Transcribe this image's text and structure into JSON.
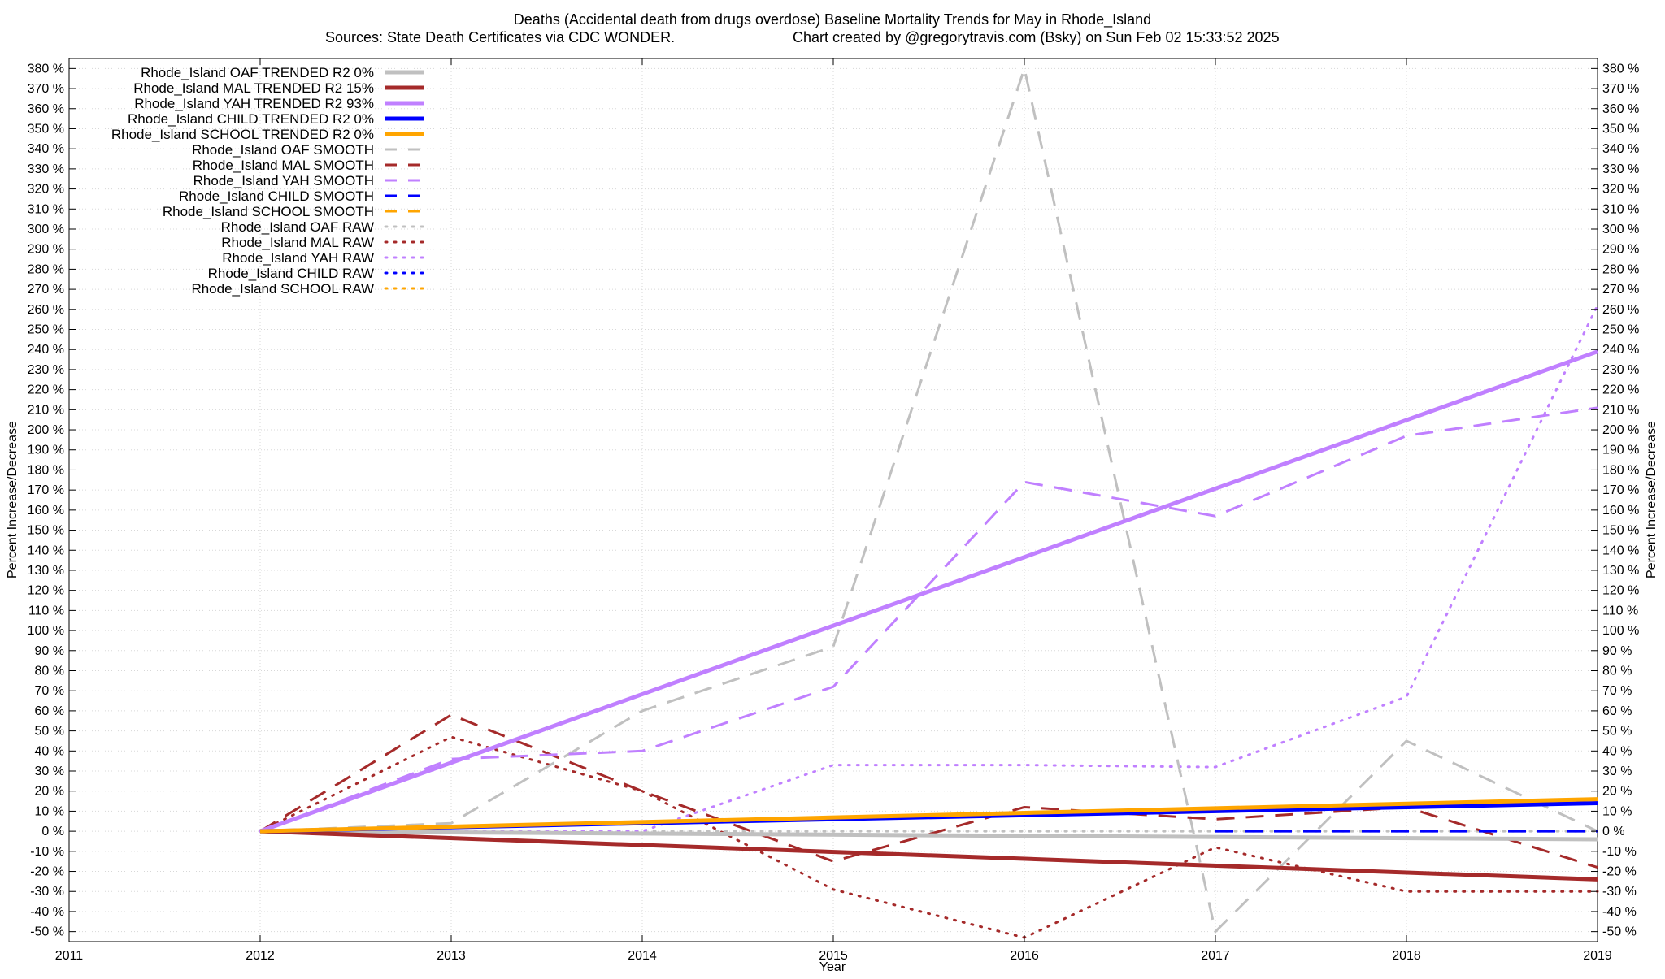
{
  "chart_data": {
    "type": "line",
    "title": "Deaths (Accidental death from drugs overdose)  Baseline Mortality Trends for May in Rhode_Island",
    "subtitle_left": "Sources: State Death Certificates via CDC WONDER.",
    "subtitle_right": "Chart created by @gregorytravis.com (Bsky) on Sun Feb 02 15:33:52 2025",
    "xlabel": "Year",
    "ylabel": "Percent Increase/Decrease",
    "y2label": "Percent Increase/Decrease",
    "xlim": [
      2011,
      2019
    ],
    "ylim": [
      -55,
      385
    ],
    "x_ticks": [
      "2011",
      "2012",
      "2013",
      "2014",
      "2015",
      "2016",
      "2017",
      "2018",
      "2019"
    ],
    "y_tick_values": [
      -50,
      -40,
      -30,
      -20,
      -10,
      0,
      10,
      20,
      30,
      40,
      50,
      60,
      70,
      80,
      90,
      100,
      110,
      120,
      130,
      140,
      150,
      160,
      170,
      180,
      190,
      200,
      210,
      220,
      230,
      240,
      250,
      260,
      270,
      280,
      290,
      300,
      310,
      320,
      330,
      340,
      350,
      360,
      370,
      380
    ],
    "y_tick_suffix": " %",
    "grid": true,
    "legend_position": "top-left",
    "series": [
      {
        "name": "Rhode_Island OAF TRENDED R2  0%",
        "color": "#c0c0c0",
        "style": "solid",
        "x": [
          2012,
          2019
        ],
        "y": [
          0,
          -4
        ]
      },
      {
        "name": "Rhode_Island MAL TRENDED R2  15%",
        "color": "#a52a2a",
        "style": "solid",
        "x": [
          2012,
          2019
        ],
        "y": [
          0,
          -24
        ]
      },
      {
        "name": "Rhode_Island YAH TRENDED R2  93%",
        "color": "#c080ff",
        "style": "solid",
        "x": [
          2012,
          2019
        ],
        "y": [
          0,
          239
        ]
      },
      {
        "name": "Rhode_Island CHILD TRENDED R2  0%",
        "color": "#0000ff",
        "style": "solid",
        "x": [
          2012,
          2019
        ],
        "y": [
          0,
          14
        ]
      },
      {
        "name": "Rhode_Island SCHOOL TRENDED R2  0%",
        "color": "#ffa500",
        "style": "solid",
        "x": [
          2012,
          2019
        ],
        "y": [
          0,
          16
        ]
      },
      {
        "name": "Rhode_Island OAF SMOOTH",
        "color": "#c0c0c0",
        "style": "dashed",
        "x": [
          2012,
          2013,
          2014,
          2015,
          2016,
          2017,
          2018,
          2019
        ],
        "y": [
          0,
          4,
          60,
          92,
          380,
          -50,
          45,
          0
        ]
      },
      {
        "name": "Rhode_Island MAL SMOOTH",
        "color": "#a52a2a",
        "style": "dashed",
        "x": [
          2012,
          2013,
          2014,
          2015,
          2016,
          2017,
          2018,
          2019
        ],
        "y": [
          0,
          58,
          20,
          -15,
          12,
          6,
          12,
          -18
        ]
      },
      {
        "name": "Rhode_Island YAH SMOOTH",
        "color": "#c080ff",
        "style": "dashed",
        "x": [
          2012,
          2013,
          2014,
          2015,
          2016,
          2017,
          2018,
          2019
        ],
        "y": [
          0,
          36,
          40,
          72,
          174,
          157,
          197,
          211
        ]
      },
      {
        "name": "Rhode_Island CHILD SMOOTH",
        "color": "#0000ff",
        "style": "dashed",
        "x": [
          2017,
          2019
        ],
        "y": [
          0,
          0
        ]
      },
      {
        "name": "Rhode_Island SCHOOL SMOOTH",
        "color": "#ffa500",
        "style": "dashed",
        "x": [],
        "y": []
      },
      {
        "name": "Rhode_Island OAF RAW",
        "color": "#c0c0c0",
        "style": "dotted",
        "x": [
          2012,
          2013,
          2014,
          2015,
          2016,
          2017,
          2018,
          2019
        ],
        "y": [
          0,
          0,
          0,
          0,
          0,
          0,
          0,
          0
        ]
      },
      {
        "name": "Rhode_Island MAL RAW",
        "color": "#a52a2a",
        "style": "dotted",
        "x": [
          2012,
          2013,
          2014,
          2015,
          2016,
          2017,
          2018,
          2019
        ],
        "y": [
          0,
          47,
          20,
          -29,
          -53,
          -8,
          -30,
          -30
        ]
      },
      {
        "name": "Rhode_Island YAH RAW",
        "color": "#c080ff",
        "style": "dotted",
        "x": [
          2012,
          2013,
          2014,
          2015,
          2016,
          2017,
          2018,
          2019
        ],
        "y": [
          0,
          0,
          0,
          33,
          33,
          32,
          67,
          262
        ]
      },
      {
        "name": "Rhode_Island CHILD RAW",
        "color": "#0000ff",
        "style": "dotted",
        "x": [],
        "y": []
      },
      {
        "name": "Rhode_Island SCHOOL RAW",
        "color": "#ffa500",
        "style": "dotted",
        "x": [],
        "y": []
      }
    ]
  }
}
